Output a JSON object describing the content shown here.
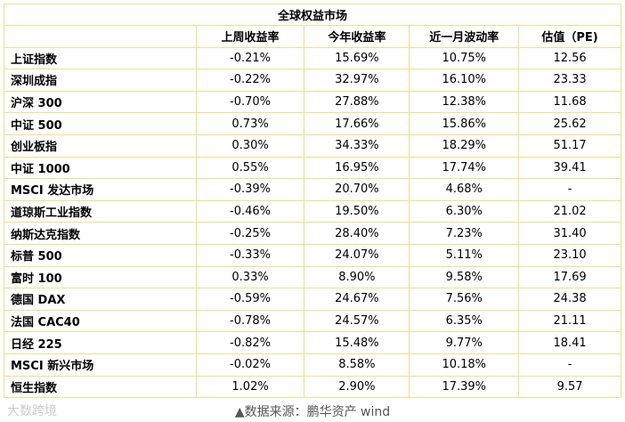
{
  "table": {
    "title": "全球权益市场",
    "header": [
      "上周收益率",
      "今年收益率",
      "近一月波动率",
      "估值（PE)"
    ],
    "rows": [
      [
        "上证指数",
        "-0.21%",
        "15.69%",
        "10.75%",
        "12.56"
      ],
      [
        "深圳成指",
        "-0.22%",
        "32.97%",
        "16.10%",
        "23.33"
      ],
      [
        "沪深 300",
        "-0.70%",
        "27.88%",
        "12.38%",
        "11.68"
      ],
      [
        "中证 500",
        "0.73%",
        "17.66%",
        "15.86%",
        "25.62"
      ],
      [
        "创业板指",
        "0.30%",
        "34.33%",
        "18.29%",
        "51.17"
      ],
      [
        "中证 1000",
        "0.55%",
        "16.95%",
        "17.74%",
        "39.41"
      ],
      [
        "MSCI 发达市场",
        "-0.39%",
        "20.70%",
        "4.68%",
        "-"
      ],
      [
        "道琼斯工业指数",
        "-0.46%",
        "19.50%",
        "6.30%",
        "21.02"
      ],
      [
        "纳斯达克指数",
        "-0.25%",
        "28.40%",
        "7.23%",
        "31.40"
      ],
      [
        "标普 500",
        "-0.33%",
        "24.07%",
        "5.11%",
        "23.10"
      ],
      [
        "富时 100",
        "0.33%",
        "8.90%",
        "9.58%",
        "17.69"
      ],
      [
        "德国 DAX",
        "-0.59%",
        "24.67%",
        "7.56%",
        "24.38"
      ],
      [
        "法国 CAC40",
        "-0.78%",
        "24.57%",
        "6.35%",
        "21.11"
      ],
      [
        "日经 225",
        "-0.82%",
        "15.48%",
        "9.77%",
        "18.41"
      ],
      [
        "MSCI 新兴市场",
        "-0.02%",
        "8.58%",
        "10.18%",
        "-"
      ],
      [
        "恒生指数",
        "1.02%",
        "2.90%",
        "17.39%",
        "9.57"
      ]
    ]
  },
  "source": "▲数据来源：鹏华资产  wind",
  "watermark": "大数跨境"
}
